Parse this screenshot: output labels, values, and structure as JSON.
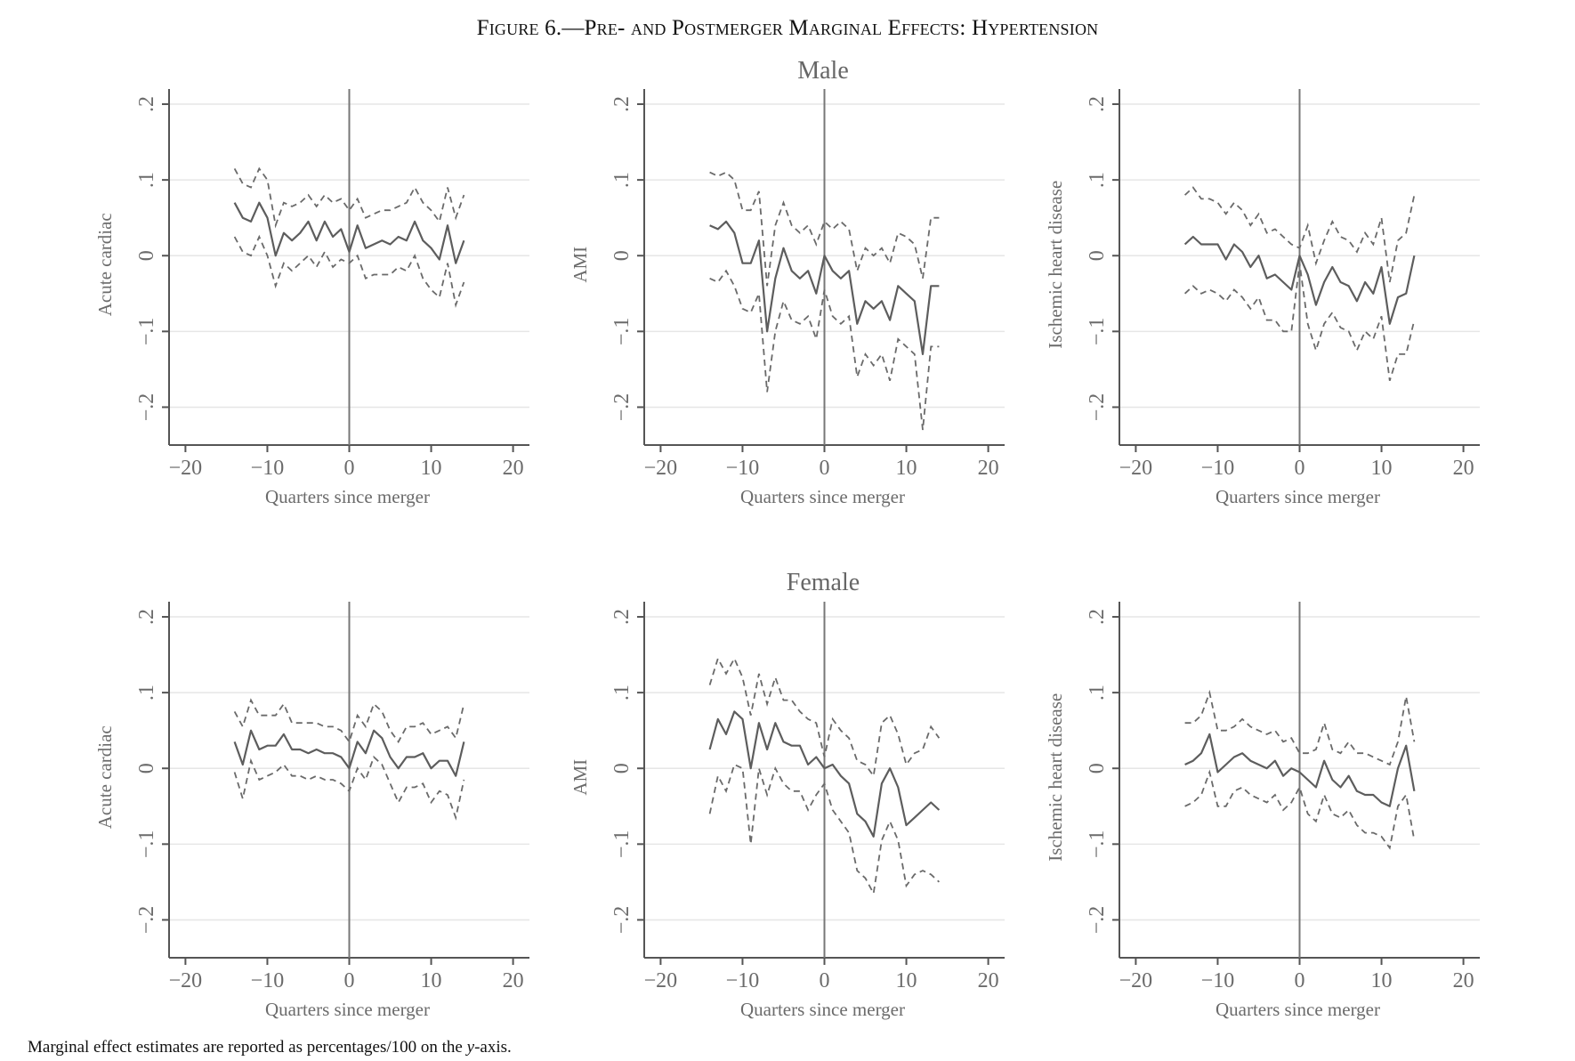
{
  "figure": {
    "title": "Figure 6.—Pre- and Postmerger Marginal Effects: Hypertension",
    "note_prefix": "Marginal effect estimates are reported as percentages/100 on the ",
    "note_var": "y",
    "note_suffix": "-axis.",
    "row_titles": [
      "Male",
      "Female"
    ]
  },
  "colors": {
    "estimate": "#5d5d5d",
    "ci": "#6a6a6a",
    "grid": "#e6e6e6",
    "axis": "#555555"
  },
  "chart_data": [
    {
      "type": "line",
      "row": "Male",
      "xlabel": "Quarters since merger",
      "ylabel": "Acute cardiac",
      "xlim": [
        -22,
        22
      ],
      "ylim": [
        -0.25,
        0.22
      ],
      "x_ticks": [
        -20,
        -10,
        0,
        10,
        20
      ],
      "x_tick_labels": [
        "−20",
        "−10",
        "0",
        "10",
        "20"
      ],
      "y_ticks": [
        -0.2,
        -0.1,
        0,
        0.1,
        0.2
      ],
      "y_tick_labels": [
        "−.2",
        "−.1",
        "0",
        ".1",
        ".2"
      ],
      "grid": true,
      "vline_x": 0,
      "x": [
        -14,
        -13,
        -12,
        -11,
        -10,
        -9,
        -8,
        -7,
        -6,
        -5,
        -4,
        -3,
        -2,
        -1,
        0,
        1,
        2,
        3,
        4,
        5,
        6,
        7,
        8,
        9,
        10,
        11,
        12,
        13,
        14
      ],
      "series": [
        {
          "style": "solid",
          "values": [
            0.07,
            0.05,
            0.045,
            0.07,
            0.05,
            0.0,
            0.03,
            0.02,
            0.03,
            0.045,
            0.02,
            0.045,
            0.025,
            0.035,
            0.005,
            0.04,
            0.01,
            0.015,
            0.02,
            0.015,
            0.025,
            0.02,
            0.045,
            0.02,
            0.01,
            -0.005,
            0.04,
            -0.01,
            0.02
          ]
        },
        {
          "style": "dashed",
          "values": [
            0.115,
            0.095,
            0.09,
            0.115,
            0.1,
            0.04,
            0.07,
            0.065,
            0.07,
            0.08,
            0.065,
            0.08,
            0.07,
            0.075,
            0.06,
            0.075,
            0.05,
            0.055,
            0.06,
            0.06,
            0.065,
            0.07,
            0.09,
            0.07,
            0.06,
            0.045,
            0.09,
            0.05,
            0.08
          ]
        },
        {
          "style": "dashed",
          "values": [
            0.025,
            0.005,
            0.0,
            0.025,
            0.0,
            -0.04,
            -0.01,
            -0.02,
            -0.01,
            0.0,
            -0.015,
            0.005,
            -0.015,
            -0.005,
            -0.01,
            0.0,
            -0.03,
            -0.025,
            -0.025,
            -0.025,
            -0.015,
            -0.02,
            0.0,
            -0.03,
            -0.045,
            -0.055,
            -0.01,
            -0.065,
            -0.035
          ]
        }
      ]
    },
    {
      "type": "line",
      "row": "Male",
      "xlabel": "Quarters since merger",
      "ylabel": "AMI",
      "xlim": [
        -22,
        22
      ],
      "ylim": [
        -0.25,
        0.22
      ],
      "x_ticks": [
        -20,
        -10,
        0,
        10,
        20
      ],
      "x_tick_labels": [
        "−20",
        "−10",
        "0",
        "10",
        "20"
      ],
      "y_ticks": [
        -0.2,
        -0.1,
        0,
        0.1,
        0.2
      ],
      "y_tick_labels": [
        "−.2",
        "−.1",
        "0",
        ".1",
        ".2"
      ],
      "grid": true,
      "vline_x": 0,
      "x": [
        -14,
        -13,
        -12,
        -11,
        -10,
        -9,
        -8,
        -7,
        -6,
        -5,
        -4,
        -3,
        -2,
        -1,
        0,
        1,
        2,
        3,
        4,
        5,
        6,
        7,
        8,
        9,
        10,
        11,
        12,
        13,
        14
      ],
      "series": [
        {
          "style": "solid",
          "values": [
            0.04,
            0.035,
            0.045,
            0.03,
            -0.01,
            -0.01,
            0.02,
            -0.1,
            -0.03,
            0.01,
            -0.02,
            -0.03,
            -0.02,
            -0.05,
            0.0,
            -0.02,
            -0.03,
            -0.02,
            -0.09,
            -0.06,
            -0.07,
            -0.06,
            -0.085,
            -0.04,
            -0.05,
            -0.06,
            -0.13,
            -0.04,
            -0.04
          ]
        },
        {
          "style": "dashed",
          "values": [
            0.11,
            0.105,
            0.11,
            0.1,
            0.06,
            0.06,
            0.085,
            -0.04,
            0.04,
            0.07,
            0.04,
            0.03,
            0.04,
            0.015,
            0.045,
            0.035,
            0.045,
            0.035,
            -0.02,
            0.01,
            0.0,
            0.01,
            -0.01,
            0.03,
            0.025,
            0.015,
            -0.03,
            0.05,
            0.05
          ]
        },
        {
          "style": "dashed",
          "values": [
            -0.03,
            -0.035,
            -0.02,
            -0.04,
            -0.07,
            -0.075,
            -0.05,
            -0.18,
            -0.1,
            -0.06,
            -0.085,
            -0.09,
            -0.08,
            -0.11,
            -0.045,
            -0.08,
            -0.09,
            -0.08,
            -0.16,
            -0.13,
            -0.145,
            -0.13,
            -0.165,
            -0.11,
            -0.12,
            -0.13,
            -0.23,
            -0.12,
            -0.12
          ]
        }
      ]
    },
    {
      "type": "line",
      "row": "Male",
      "xlabel": "Quarters since merger",
      "ylabel": "Ischemic heart disease",
      "xlim": [
        -22,
        22
      ],
      "ylim": [
        -0.25,
        0.22
      ],
      "x_ticks": [
        -20,
        -10,
        0,
        10,
        20
      ],
      "x_tick_labels": [
        "−20",
        "−10",
        "0",
        "10",
        "20"
      ],
      "y_ticks": [
        -0.2,
        -0.1,
        0,
        0.1,
        0.2
      ],
      "y_tick_labels": [
        "−.2",
        "−.1",
        "0",
        ".1",
        ".2"
      ],
      "grid": true,
      "vline_x": 0,
      "x": [
        -14,
        -13,
        -12,
        -11,
        -10,
        -9,
        -8,
        -7,
        -6,
        -5,
        -4,
        -3,
        -2,
        -1,
        0,
        1,
        2,
        3,
        4,
        5,
        6,
        7,
        8,
        9,
        10,
        11,
        12,
        13,
        14
      ],
      "series": [
        {
          "style": "solid",
          "values": [
            0.015,
            0.025,
            0.015,
            0.015,
            0.015,
            -0.005,
            0.015,
            0.005,
            -0.015,
            0.0,
            -0.03,
            -0.025,
            -0.035,
            -0.045,
            0.0,
            -0.025,
            -0.065,
            -0.035,
            -0.015,
            -0.035,
            -0.04,
            -0.06,
            -0.035,
            -0.05,
            -0.015,
            -0.09,
            -0.055,
            -0.05,
            0.0
          ]
        },
        {
          "style": "dashed",
          "values": [
            0.08,
            0.09,
            0.075,
            0.075,
            0.07,
            0.055,
            0.07,
            0.06,
            0.04,
            0.055,
            0.03,
            0.035,
            0.025,
            0.015,
            0.01,
            0.04,
            -0.01,
            0.02,
            0.045,
            0.025,
            0.02,
            0.005,
            0.03,
            0.015,
            0.05,
            -0.035,
            0.02,
            0.03,
            0.08
          ]
        },
        {
          "style": "dashed",
          "values": [
            -0.05,
            -0.04,
            -0.05,
            -0.045,
            -0.05,
            -0.06,
            -0.045,
            -0.055,
            -0.07,
            -0.055,
            -0.085,
            -0.085,
            -0.1,
            -0.1,
            -0.01,
            -0.09,
            -0.125,
            -0.09,
            -0.075,
            -0.095,
            -0.1,
            -0.125,
            -0.1,
            -0.11,
            -0.08,
            -0.165,
            -0.13,
            -0.13,
            -0.085
          ]
        }
      ]
    },
    {
      "type": "line",
      "row": "Female",
      "xlabel": "Quarters since merger",
      "ylabel": "Acute cardiac",
      "xlim": [
        -22,
        22
      ],
      "ylim": [
        -0.25,
        0.22
      ],
      "x_ticks": [
        -20,
        -10,
        0,
        10,
        20
      ],
      "x_tick_labels": [
        "−20",
        "−10",
        "0",
        "10",
        "20"
      ],
      "y_ticks": [
        -0.2,
        -0.1,
        0,
        0.1,
        0.2
      ],
      "y_tick_labels": [
        "−.2",
        "−.1",
        "0",
        ".1",
        ".2"
      ],
      "grid": true,
      "vline_x": 0,
      "x": [
        -14,
        -13,
        -12,
        -11,
        -10,
        -9,
        -8,
        -7,
        -6,
        -5,
        -4,
        -3,
        -2,
        -1,
        0,
        1,
        2,
        3,
        4,
        5,
        6,
        7,
        8,
        9,
        10,
        11,
        12,
        13,
        14
      ],
      "series": [
        {
          "style": "solid",
          "values": [
            0.035,
            0.005,
            0.05,
            0.025,
            0.03,
            0.03,
            0.045,
            0.025,
            0.025,
            0.02,
            0.025,
            0.02,
            0.02,
            0.015,
            0.0,
            0.035,
            0.02,
            0.05,
            0.04,
            0.015,
            0.0,
            0.015,
            0.015,
            0.02,
            0.0,
            0.01,
            0.01,
            -0.01,
            0.035
          ]
        },
        {
          "style": "dashed",
          "values": [
            0.075,
            0.055,
            0.09,
            0.07,
            0.07,
            0.07,
            0.085,
            0.06,
            0.06,
            0.06,
            0.06,
            0.055,
            0.055,
            0.05,
            0.035,
            0.07,
            0.055,
            0.085,
            0.075,
            0.05,
            0.035,
            0.055,
            0.055,
            0.06,
            0.045,
            0.05,
            0.055,
            0.04,
            0.085
          ]
        },
        {
          "style": "dashed",
          "values": [
            -0.005,
            -0.04,
            0.01,
            -0.015,
            -0.01,
            -0.005,
            0.005,
            -0.01,
            -0.01,
            -0.015,
            -0.01,
            -0.015,
            -0.015,
            -0.02,
            -0.03,
            0.0,
            -0.015,
            0.015,
            0.005,
            -0.02,
            -0.045,
            -0.025,
            -0.025,
            -0.02,
            -0.045,
            -0.03,
            -0.035,
            -0.065,
            -0.015
          ]
        }
      ]
    },
    {
      "type": "line",
      "row": "Female",
      "xlabel": "Quarters since merger",
      "ylabel": "AMI",
      "xlim": [
        -22,
        22
      ],
      "ylim": [
        -0.25,
        0.22
      ],
      "x_ticks": [
        -20,
        -10,
        0,
        10,
        20
      ],
      "x_tick_labels": [
        "−20",
        "−10",
        "0",
        "10",
        "20"
      ],
      "y_ticks": [
        -0.2,
        -0.1,
        0,
        0.1,
        0.2
      ],
      "y_tick_labels": [
        "−.2",
        "−.1",
        "0",
        ".1",
        ".2"
      ],
      "grid": true,
      "vline_x": 0,
      "x": [
        -14,
        -13,
        -12,
        -11,
        -10,
        -9,
        -8,
        -7,
        -6,
        -5,
        -4,
        -3,
        -2,
        -1,
        0,
        1,
        2,
        3,
        4,
        5,
        6,
        7,
        8,
        9,
        10,
        11,
        12,
        13,
        14
      ],
      "series": [
        {
          "style": "solid",
          "values": [
            0.025,
            0.065,
            0.045,
            0.075,
            0.065,
            0.0,
            0.06,
            0.025,
            0.06,
            0.035,
            0.03,
            0.03,
            0.005,
            0.015,
            0.0,
            0.005,
            -0.01,
            -0.02,
            -0.06,
            -0.07,
            -0.09,
            -0.02,
            0.0,
            -0.025,
            -0.075,
            -0.065,
            -0.055,
            -0.045,
            -0.055
          ]
        },
        {
          "style": "dashed",
          "values": [
            0.11,
            0.145,
            0.125,
            0.145,
            0.12,
            0.07,
            0.125,
            0.085,
            0.12,
            0.09,
            0.09,
            0.075,
            0.065,
            0.06,
            0.015,
            0.065,
            0.05,
            0.04,
            0.01,
            0.005,
            -0.01,
            0.06,
            0.07,
            0.045,
            0.005,
            0.02,
            0.025,
            0.055,
            0.04
          ]
        },
        {
          "style": "dashed",
          "values": [
            -0.06,
            -0.01,
            -0.03,
            0.005,
            0.0,
            -0.1,
            0.0,
            -0.035,
            0.0,
            -0.02,
            -0.03,
            -0.03,
            -0.055,
            -0.035,
            -0.02,
            -0.055,
            -0.07,
            -0.085,
            -0.135,
            -0.145,
            -0.165,
            -0.095,
            -0.07,
            -0.095,
            -0.155,
            -0.14,
            -0.135,
            -0.14,
            -0.15
          ]
        }
      ]
    },
    {
      "type": "line",
      "row": "Female",
      "xlabel": "Quarters since merger",
      "ylabel": "Ischemic heart disease",
      "xlim": [
        -22,
        22
      ],
      "ylim": [
        -0.25,
        0.22
      ],
      "x_ticks": [
        -20,
        -10,
        0,
        10,
        20
      ],
      "x_tick_labels": [
        "−20",
        "−10",
        "0",
        "10",
        "20"
      ],
      "y_ticks": [
        -0.2,
        -0.1,
        0,
        0.1,
        0.2
      ],
      "y_tick_labels": [
        "−.2",
        "−.1",
        "0",
        ".1",
        ".2"
      ],
      "grid": true,
      "vline_x": 0,
      "x": [
        -14,
        -13,
        -12,
        -11,
        -10,
        -9,
        -8,
        -7,
        -6,
        -5,
        -4,
        -3,
        -2,
        -1,
        0,
        1,
        2,
        3,
        4,
        5,
        6,
        7,
        8,
        9,
        10,
        11,
        12,
        13,
        14
      ],
      "series": [
        {
          "style": "solid",
          "values": [
            0.005,
            0.01,
            0.02,
            0.045,
            -0.005,
            0.005,
            0.015,
            0.02,
            0.01,
            0.005,
            0.0,
            0.01,
            -0.01,
            0.0,
            -0.005,
            -0.015,
            -0.025,
            0.01,
            -0.015,
            -0.025,
            -0.01,
            -0.03,
            -0.035,
            -0.035,
            -0.045,
            -0.05,
            0.0,
            0.03,
            -0.03
          ]
        },
        {
          "style": "dashed",
          "values": [
            0.06,
            0.06,
            0.07,
            0.1,
            0.05,
            0.05,
            0.055,
            0.065,
            0.055,
            0.05,
            0.045,
            0.05,
            0.035,
            0.04,
            0.02,
            0.02,
            0.025,
            0.06,
            0.025,
            0.02,
            0.035,
            0.02,
            0.02,
            0.015,
            0.01,
            0.005,
            0.035,
            0.095,
            0.035
          ]
        },
        {
          "style": "dashed",
          "values": [
            -0.05,
            -0.045,
            -0.035,
            -0.005,
            -0.05,
            -0.05,
            -0.03,
            -0.025,
            -0.035,
            -0.04,
            -0.045,
            -0.035,
            -0.055,
            -0.045,
            -0.025,
            -0.06,
            -0.07,
            -0.035,
            -0.06,
            -0.065,
            -0.055,
            -0.075,
            -0.085,
            -0.085,
            -0.09,
            -0.105,
            -0.05,
            -0.035,
            -0.095
          ]
        }
      ]
    }
  ]
}
